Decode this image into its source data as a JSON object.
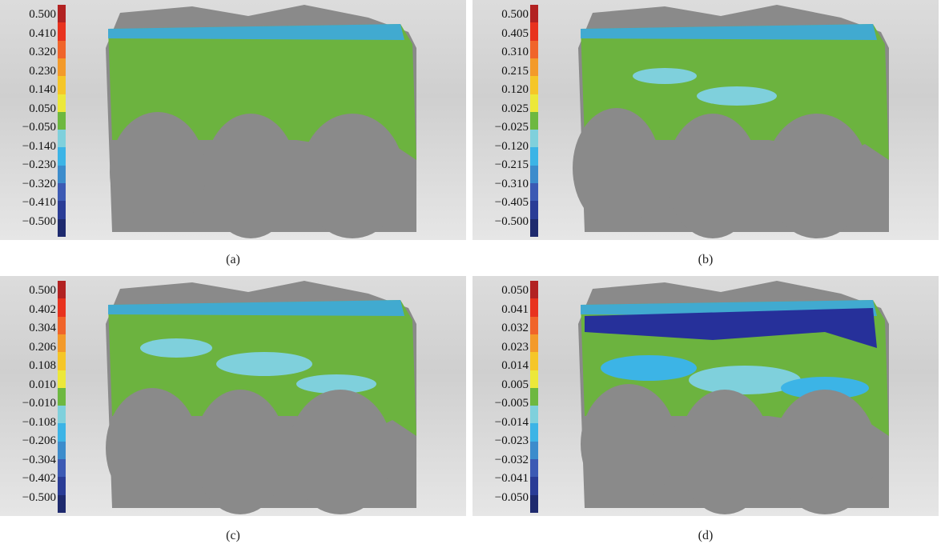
{
  "panels": [
    {
      "caption": "(a)",
      "ticks": [
        "0.500",
        "0.410",
        "0.320",
        "0.230",
        "0.140",
        "0.050",
        "−0.050",
        "−0.140",
        "−0.230",
        "−0.320",
        "−0.410",
        "−0.500"
      ]
    },
    {
      "caption": "(b)",
      "ticks": [
        "0.500",
        "0.405",
        "0.310",
        "0.215",
        "0.120",
        "0.025",
        "−0.025",
        "−0.120",
        "−0.215",
        "−0.310",
        "−0.405",
        "−0.500"
      ]
    },
    {
      "caption": "(c)",
      "ticks": [
        "0.500",
        "0.402",
        "0.304",
        "0.206",
        "0.108",
        "0.010",
        "−0.010",
        "−0.108",
        "−0.206",
        "−0.304",
        "−0.402",
        "−0.500"
      ]
    },
    {
      "caption": "(d)",
      "ticks": [
        "0.050",
        "0.041",
        "0.032",
        "0.023",
        "0.014",
        "0.005",
        "−0.005",
        "−0.014",
        "−0.023",
        "−0.032",
        "−0.041",
        "−0.050"
      ]
    }
  ],
  "scale_colors": [
    "#b22222",
    "#e8321e",
    "#f0642a",
    "#f39a2a",
    "#f5c628",
    "#ece83a",
    "#6db840",
    "#7fd0dc",
    "#3cb4e6",
    "#3c8ccc",
    "#3c5ab4",
    "#2a3c96",
    "#1e2a6e"
  ]
}
